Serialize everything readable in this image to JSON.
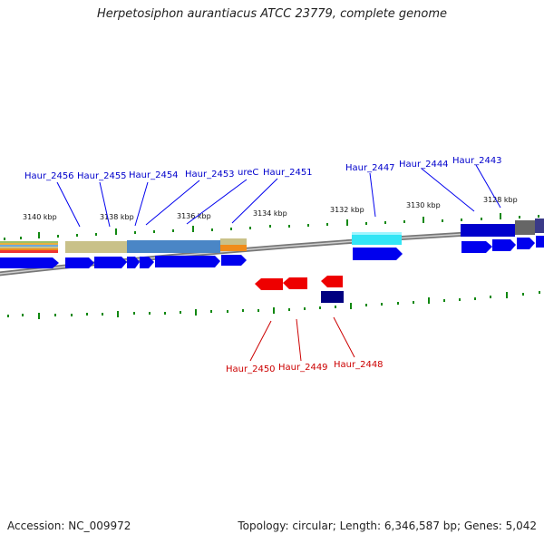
{
  "title": "Herpetosiphon aurantiacus ATCC 23779, complete genome",
  "footer": {
    "accession": "Accession: NC_009972",
    "topology": "Topology: circular; Length: 6,346,587 bp; Genes: 5,042"
  },
  "colors": {
    "forward_gene": "#0000ee",
    "reverse_gene": "#ee0000",
    "forward_label": "#0000cc",
    "reverse_label": "#cc0000",
    "tick": "#008800",
    "backbone": "#888888",
    "cog_cyan": "#33e5f5",
    "cog_navy": "#000080",
    "cog_steelblue": "#4a86c6",
    "cog_khaki": "#c9c189",
    "cog_orange": "#f08c1a"
  },
  "kbp_labels": [
    "3140 kbp",
    "3138 kbp",
    "3136 kbp",
    "3134 kbp",
    "3132 kbp",
    "3130 kbp",
    "3128 kbp"
  ],
  "forward_genes": [
    "Haur_2456",
    "Haur_2455",
    "Haur_2454",
    "Haur_2453",
    "ureC",
    "Haur_2451",
    "Haur_2447",
    "Haur_2444",
    "Haur_2443"
  ],
  "reverse_genes": [
    "Haur_2450",
    "Haur_2449",
    "Haur_2448"
  ]
}
